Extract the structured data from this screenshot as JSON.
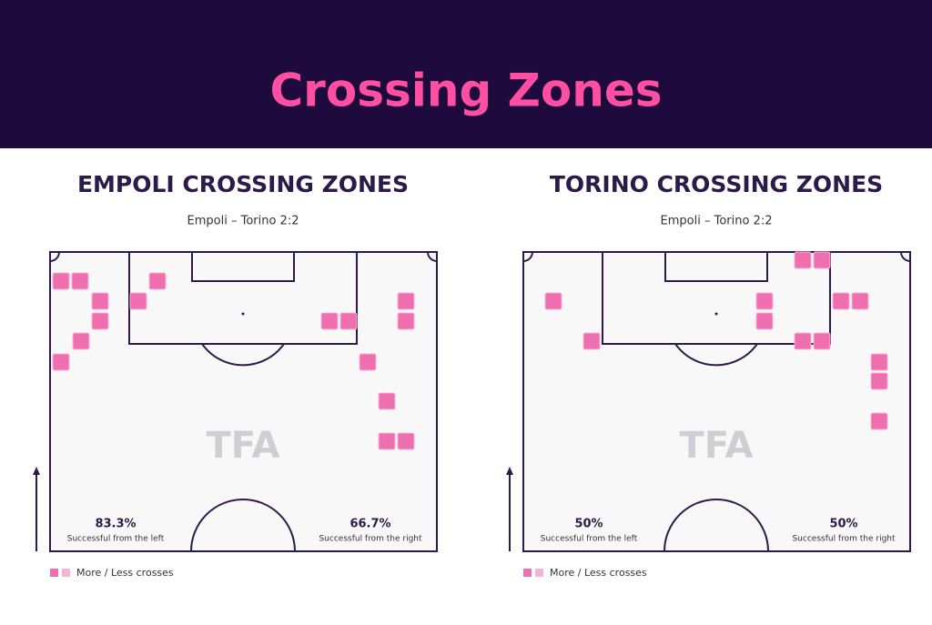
{
  "header": {
    "title": "Crossing Zones"
  },
  "panels": [
    {
      "title": "EMPOLI CROSSING ZONES",
      "subtitle": "Empoli – Torino 2:2",
      "watermark": "TFA",
      "left": {
        "value": "83.3%",
        "label": "Successful from the left"
      },
      "right": {
        "value": "66.7%",
        "label": "Successful from the right"
      },
      "legend": "More / Less crosses"
    },
    {
      "title": "TORINO CROSSING ZONES",
      "subtitle": "Empoli – Torino 2:2",
      "watermark": "TFA",
      "left": {
        "value": "50%",
        "label": "Successful from the left"
      },
      "right": {
        "value": "50%",
        "label": "Successful from the right"
      },
      "legend": "More / Less crosses"
    }
  ]
}
